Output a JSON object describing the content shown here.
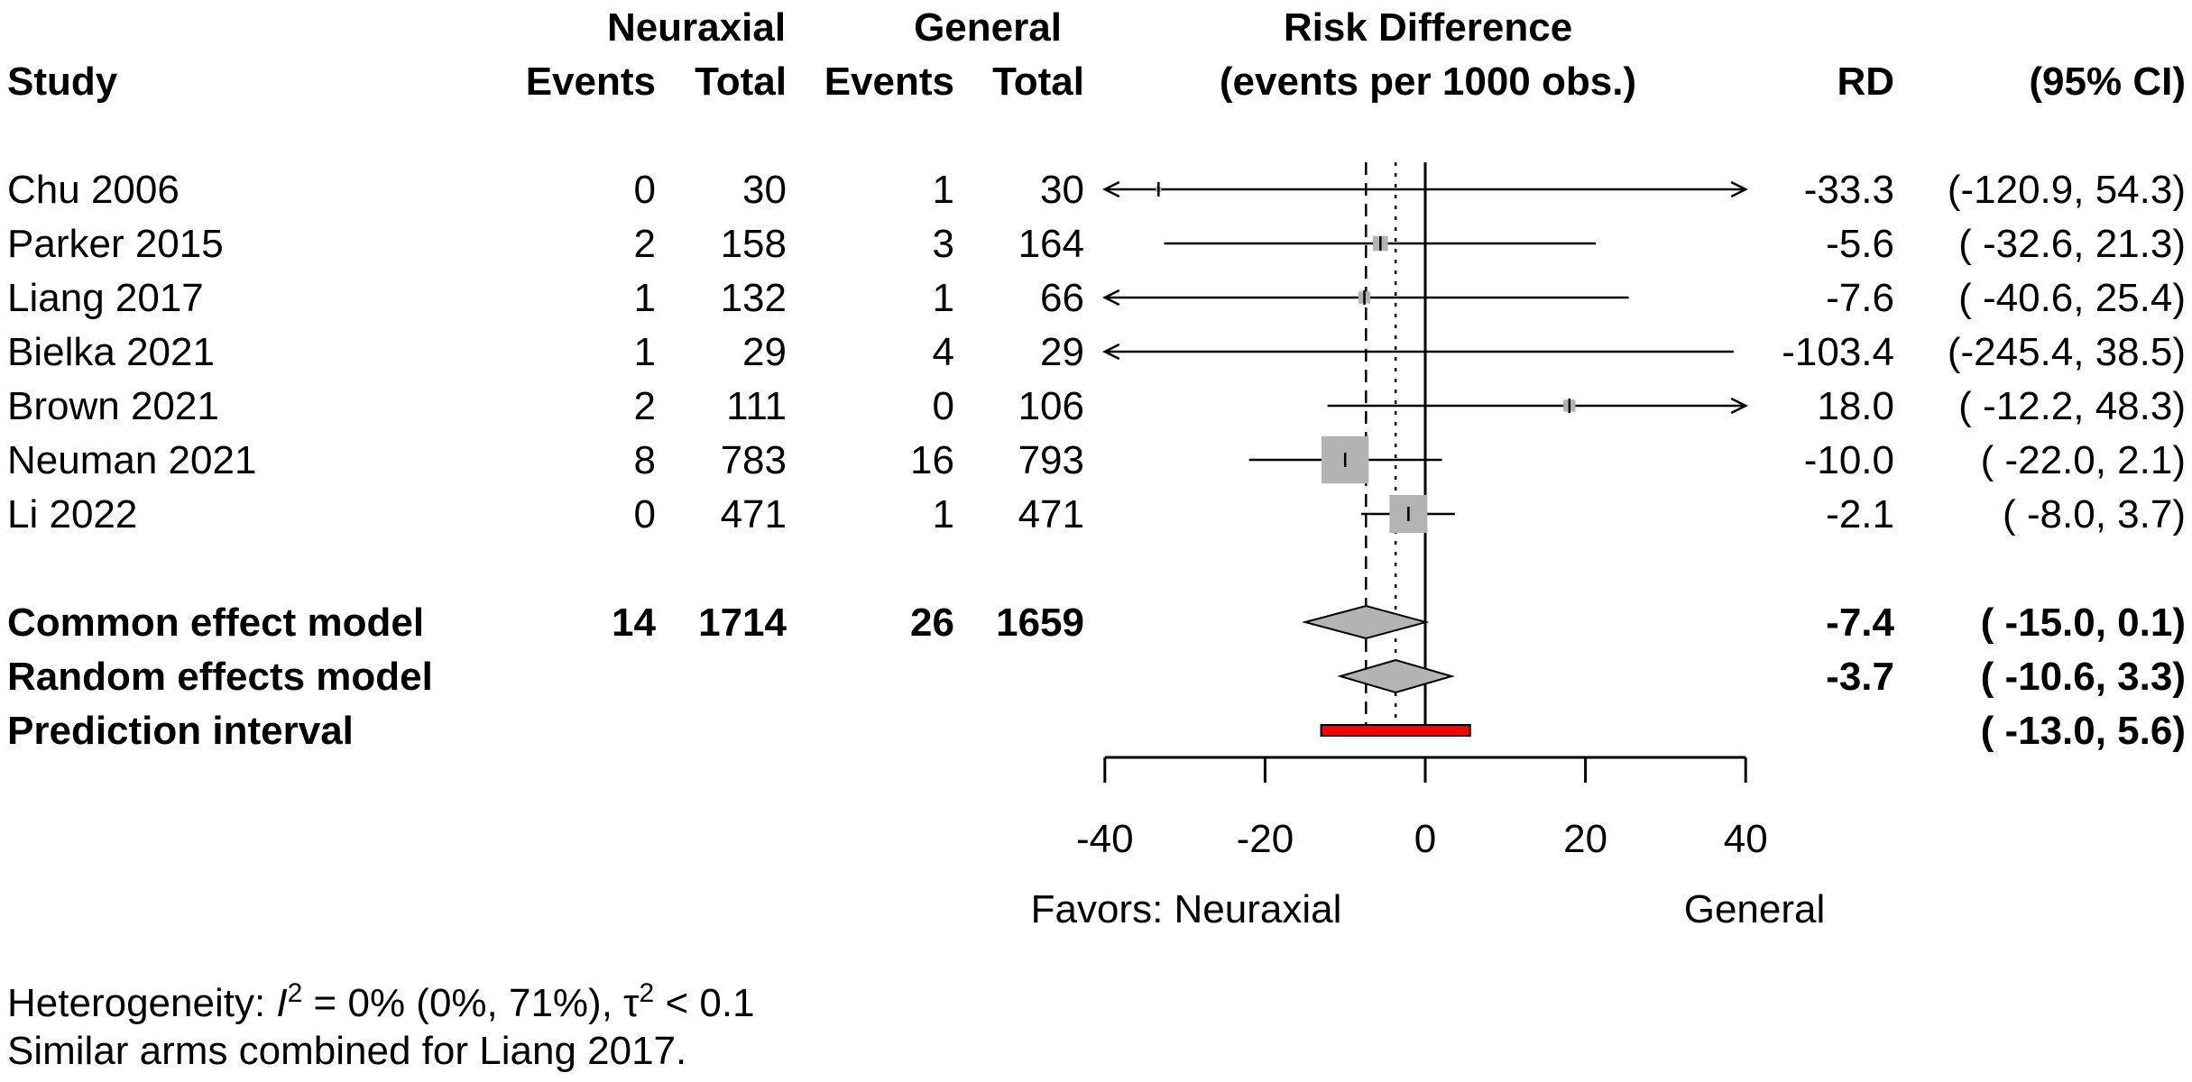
{
  "chart_data": {
    "type": "forest",
    "header": {
      "study": "Study",
      "group1": "Neuraxial",
      "group2": "General",
      "events": "Events",
      "total": "Total",
      "effect_title_1": "Risk Difference",
      "effect_title_2": "(events per 1000 obs.)",
      "rd": "RD",
      "ci": "(95% CI)"
    },
    "studies": [
      {
        "label": "Chu 2006",
        "e1": "0",
        "n1": "30",
        "e2": "1",
        "n2": "30",
        "rd_text": "-33.3",
        "ci_text": "(-120.9, 54.3)",
        "rd": -33.3,
        "lo": -120.9,
        "hi": 54.3,
        "weight": 0.2
      },
      {
        "label": "Parker 2015",
        "e1": "2",
        "n1": "158",
        "e2": "3",
        "n2": "164",
        "rd_text": "-5.6",
        "ci_text": "( -32.6, 21.3)",
        "rd": -5.6,
        "lo": -32.6,
        "hi": 21.3,
        "weight": 1.4
      },
      {
        "label": "Liang 2017",
        "e1": "1",
        "n1": "132",
        "e2": "1",
        "n2": "66",
        "rd_text": "-7.6",
        "ci_text": "( -40.6, 25.4)",
        "rd": -7.6,
        "lo": -40.6,
        "hi": 25.4,
        "weight": 0.9
      },
      {
        "label": "Bielka 2021",
        "e1": "1",
        "n1": "29",
        "e2": "4",
        "n2": "29",
        "rd_text": "-103.4",
        "ci_text": "(-245.4, 38.5)",
        "rd": -103.4,
        "lo": -245.4,
        "hi": 38.5,
        "weight": 0
      },
      {
        "label": "Brown 2021",
        "e1": "2",
        "n1": "111",
        "e2": "0",
        "n2": "106",
        "rd_text": "18.0",
        "ci_text": "( -12.2, 48.3)",
        "rd": 18.0,
        "lo": -12.2,
        "hi": 48.3,
        "weight": 0.9
      },
      {
        "label": "Neuman 2021",
        "e1": "8",
        "n1": "783",
        "e2": "16",
        "n2": "793",
        "rd_text": "-10.0",
        "ci_text": "( -22.0,  2.1)",
        "rd": -10.0,
        "lo": -22.0,
        "hi": 2.1,
        "weight": 14
      },
      {
        "label": "Li 2022",
        "e1": "0",
        "n1": "471",
        "e2": "1",
        "n2": "471",
        "rd_text": "-2.1",
        "ci_text": "(  -8.0,  3.7)",
        "rd": -2.1,
        "lo": -8.0,
        "hi": 3.7,
        "weight": 9
      }
    ],
    "common": {
      "label": "Common effect model",
      "e1": "14",
      "n1": "1714",
      "e2": "26",
      "n2": "1659",
      "rd_text": "-7.4",
      "ci_text": "( -15.0,  0.1)",
      "rd": -7.4,
      "lo": -15.0,
      "hi": 0.1
    },
    "random": {
      "label": "Random effects model",
      "rd_text": "-3.7",
      "ci_text": "( -10.6,  3.3)",
      "rd": -3.7,
      "lo": -10.6,
      "hi": 3.3
    },
    "prediction": {
      "label": "Prediction interval",
      "ci_text": "( -13.0,  5.6)",
      "lo": -13.0,
      "hi": 5.6
    },
    "x_ticks": [
      -40,
      -20,
      0,
      20,
      40
    ],
    "x_tick_labels": [
      "-40",
      "-20",
      "0",
      "20",
      "40"
    ],
    "xlim": [
      -40,
      40
    ],
    "favors_left": "Favors: Neuraxial",
    "favors_right": "General",
    "heterogeneity": {
      "prefix": "Heterogeneity: ",
      "i2_symbol": "I",
      "sup": "2",
      "i2_text": " = 0% (0%, 71%), ",
      "tau_symbol": "τ",
      "tau_text": " < 0.1"
    },
    "footnote": "Similar arms combined for Liang 2017.",
    "colors": {
      "square": "#b3b3b3",
      "diamond": "#b3b3b3",
      "prediction": "#ff0000",
      "line": "#000000"
    }
  }
}
